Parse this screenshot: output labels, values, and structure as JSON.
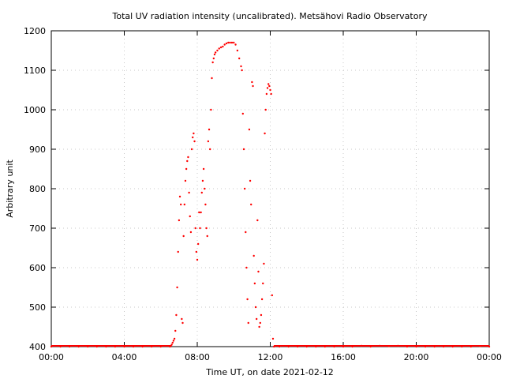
{
  "chart_data": {
    "type": "scatter",
    "title": "Total UV radiation intensity (uncalibrated). Metsähovi Radio Observatory",
    "xlabel": "Time UT, on date 2021-02-12",
    "ylabel": "Arbitrary unit",
    "x_unit": "hours UT",
    "xlim": [
      0,
      24
    ],
    "ylim": [
      400,
      1200
    ],
    "x_ticks": [
      {
        "value": 0,
        "label": "00:00"
      },
      {
        "value": 4,
        "label": "04:00"
      },
      {
        "value": 8,
        "label": "08:00"
      },
      {
        "value": 12,
        "label": "12:00"
      },
      {
        "value": 16,
        "label": "16:00"
      },
      {
        "value": 20,
        "label": "20:00"
      },
      {
        "value": 24,
        "label": "00:00"
      }
    ],
    "y_ticks": [
      {
        "value": 400,
        "label": "400"
      },
      {
        "value": 500,
        "label": "500"
      },
      {
        "value": 600,
        "label": "600"
      },
      {
        "value": 700,
        "label": "700"
      },
      {
        "value": 800,
        "label": "800"
      },
      {
        "value": 900,
        "label": "900"
      },
      {
        "value": 1000,
        "label": "1000"
      },
      {
        "value": 1100,
        "label": "1100"
      },
      {
        "value": 1200,
        "label": "1200"
      }
    ],
    "grid": true,
    "legend": "none",
    "marker_color": "#ff0000",
    "series": [
      {
        "points": [
          [
            0.0,
            400
          ],
          [
            0.5,
            400
          ],
          [
            1.0,
            400
          ],
          [
            1.5,
            400
          ],
          [
            2.0,
            400
          ],
          [
            2.5,
            400
          ],
          [
            3.0,
            400
          ],
          [
            3.5,
            400
          ],
          [
            4.0,
            400
          ],
          [
            4.5,
            400
          ],
          [
            5.0,
            400
          ],
          [
            5.5,
            400
          ],
          [
            6.0,
            400
          ],
          [
            6.5,
            400
          ],
          [
            6.6,
            405
          ],
          [
            6.65,
            410
          ],
          [
            6.7,
            415
          ],
          [
            6.75,
            420
          ],
          [
            6.8,
            440
          ],
          [
            6.85,
            480
          ],
          [
            6.9,
            550
          ],
          [
            6.95,
            640
          ],
          [
            7.0,
            720
          ],
          [
            7.05,
            780
          ],
          [
            7.1,
            760
          ],
          [
            7.15,
            470
          ],
          [
            7.2,
            460
          ],
          [
            7.25,
            680
          ],
          [
            7.3,
            760
          ],
          [
            7.35,
            820
          ],
          [
            7.4,
            850
          ],
          [
            7.45,
            870
          ],
          [
            7.5,
            880
          ],
          [
            7.55,
            790
          ],
          [
            7.6,
            730
          ],
          [
            7.65,
            690
          ],
          [
            7.7,
            900
          ],
          [
            7.75,
            930
          ],
          [
            7.8,
            940
          ],
          [
            7.85,
            920
          ],
          [
            7.9,
            700
          ],
          [
            7.95,
            640
          ],
          [
            8.0,
            620
          ],
          [
            8.05,
            660
          ],
          [
            8.1,
            740
          ],
          [
            8.15,
            700
          ],
          [
            8.2,
            740
          ],
          [
            8.25,
            790
          ],
          [
            8.3,
            820
          ],
          [
            8.35,
            850
          ],
          [
            8.4,
            800
          ],
          [
            8.45,
            760
          ],
          [
            8.5,
            700
          ],
          [
            8.55,
            680
          ],
          [
            8.6,
            920
          ],
          [
            8.65,
            950
          ],
          [
            8.7,
            900
          ],
          [
            8.75,
            1000
          ],
          [
            8.8,
            1080
          ],
          [
            8.85,
            1120
          ],
          [
            8.9,
            1130
          ],
          [
            8.95,
            1140
          ],
          [
            9.0,
            1145
          ],
          [
            9.1,
            1150
          ],
          [
            9.2,
            1155
          ],
          [
            9.3,
            1158
          ],
          [
            9.4,
            1160
          ],
          [
            9.5,
            1165
          ],
          [
            9.6,
            1168
          ],
          [
            9.7,
            1170
          ],
          [
            9.8,
            1170
          ],
          [
            9.9,
            1170
          ],
          [
            10.0,
            1170
          ],
          [
            10.1,
            1165
          ],
          [
            10.2,
            1150
          ],
          [
            10.3,
            1130
          ],
          [
            10.4,
            1110
          ],
          [
            10.45,
            1100
          ],
          [
            10.5,
            990
          ],
          [
            10.55,
            900
          ],
          [
            10.6,
            800
          ],
          [
            10.65,
            690
          ],
          [
            10.7,
            600
          ],
          [
            10.75,
            520
          ],
          [
            10.8,
            460
          ],
          [
            10.85,
            950
          ],
          [
            10.9,
            820
          ],
          [
            10.95,
            760
          ],
          [
            11.0,
            1070
          ],
          [
            11.05,
            1060
          ],
          [
            11.1,
            630
          ],
          [
            11.15,
            560
          ],
          [
            11.2,
            500
          ],
          [
            11.25,
            470
          ],
          [
            11.3,
            720
          ],
          [
            11.35,
            590
          ],
          [
            11.4,
            450
          ],
          [
            11.45,
            460
          ],
          [
            11.5,
            480
          ],
          [
            11.55,
            520
          ],
          [
            11.6,
            560
          ],
          [
            11.65,
            610
          ],
          [
            11.7,
            940
          ],
          [
            11.75,
            1000
          ],
          [
            11.8,
            1040
          ],
          [
            11.85,
            1055
          ],
          [
            11.9,
            1065
          ],
          [
            11.95,
            1060
          ],
          [
            12.0,
            1050
          ],
          [
            12.05,
            1040
          ],
          [
            12.1,
            530
          ],
          [
            12.15,
            420
          ],
          [
            12.2,
            400
          ],
          [
            12.5,
            400
          ],
          [
            13.0,
            400
          ],
          [
            13.5,
            400
          ],
          [
            14.0,
            400
          ],
          [
            14.5,
            400
          ],
          [
            15.0,
            400
          ],
          [
            15.5,
            400
          ],
          [
            16.0,
            400
          ],
          [
            16.5,
            400
          ],
          [
            17.0,
            402
          ],
          [
            17.5,
            400
          ],
          [
            18.0,
            402
          ],
          [
            18.5,
            401
          ],
          [
            19.0,
            402
          ],
          [
            19.5,
            400
          ],
          [
            20.0,
            400
          ],
          [
            20.5,
            400
          ],
          [
            21.0,
            400
          ],
          [
            21.5,
            400
          ],
          [
            22.0,
            400
          ],
          [
            22.5,
            400
          ],
          [
            23.0,
            400
          ],
          [
            23.5,
            401
          ],
          [
            24.0,
            400
          ]
        ]
      }
    ]
  }
}
